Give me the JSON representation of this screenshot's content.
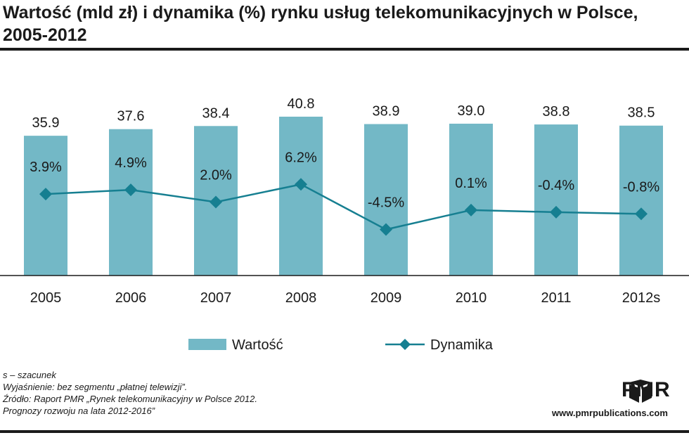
{
  "header": {
    "title": "Wartość (mld zł) i dynamika (%) rynku usług telekomunikacyjnych w Polsce, 2005-2012"
  },
  "chart_data": {
    "type": "bar",
    "categories": [
      "2005",
      "2006",
      "2007",
      "2008",
      "2009",
      "2010",
      "2011",
      "2012s"
    ],
    "series": [
      {
        "name": "Wartość",
        "type": "bar",
        "color": "#73b8c6",
        "values": [
          35.9,
          37.6,
          38.4,
          40.8,
          38.9,
          39.0,
          38.8,
          38.5
        ],
        "labels": [
          "35.9",
          "37.6",
          "38.4",
          "40.8",
          "38.9",
          "39.0",
          "38.8",
          "38.5"
        ]
      },
      {
        "name": "Dynamika",
        "type": "line",
        "color": "#167f91",
        "values": [
          3.9,
          4.9,
          2.0,
          6.2,
          -4.5,
          0.1,
          -0.4,
          -0.8
        ],
        "labels": [
          "3.9%",
          "4.9%",
          "2.0%",
          "6.2%",
          "-4.5%",
          "0.1%",
          "-0.4%",
          "-0.8%"
        ]
      }
    ],
    "legend_position": "bottom",
    "grid": false
  },
  "notes": [
    "s – szacunek",
    "Wyjaśnienie: bez segmentu „płatnej telewizji”.",
    "Źródło: Raport PMR „Rynek telekomunikacyjny w Polsce 2012.",
    "Prognozy rozwoju na lata 2012-2016”"
  ],
  "branding": {
    "logo_text": "PMR",
    "url": "www.pmrpublications.com"
  }
}
